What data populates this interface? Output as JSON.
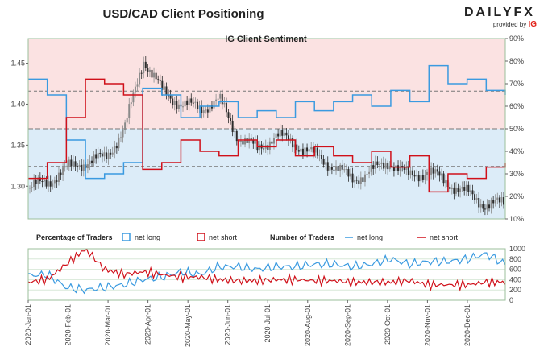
{
  "header": {
    "title": "USD/CAD Client Positioning",
    "logo_text": "DAILYFX",
    "logo_sub": "provided by",
    "logo_brand": "IG"
  },
  "colors": {
    "long": "#3a9ae0",
    "short": "#d0101a",
    "long_zone": "#dcecf8",
    "short_zone": "#fbe2e2",
    "candle_up": "#8a8a8a",
    "candle_down": "#2b2b2b",
    "grid": "#8fbf8f"
  },
  "chart_data": [
    {
      "type": "line",
      "title": "IG Client Sentiment",
      "price_axis": {
        "ylim": [
          1.26,
          1.48
        ],
        "ticks": [
          1.3,
          1.35,
          1.4,
          1.45
        ]
      },
      "sentiment_axis": {
        "ylim": [
          10,
          90
        ],
        "ticks": [
          "10%",
          "20%",
          "30%",
          "40%",
          "50%",
          "60%",
          "70%",
          "80%",
          "90%"
        ]
      },
      "x": [
        "2020-01-01",
        "2020-01-15",
        "2020-02-01",
        "2020-02-15",
        "2020-03-01",
        "2020-03-10",
        "2020-03-19",
        "2020-04-01",
        "2020-04-15",
        "2020-05-01",
        "2020-05-15",
        "2020-06-01",
        "2020-06-15",
        "2020-07-01",
        "2020-07-15",
        "2020-08-01",
        "2020-08-15",
        "2020-09-01",
        "2020-09-15",
        "2020-10-01",
        "2020-10-15",
        "2020-11-01",
        "2020-11-15",
        "2020-12-01",
        "2020-12-15",
        "2020-12-31"
      ],
      "price_close": [
        1.298,
        1.306,
        1.322,
        1.33,
        1.335,
        1.37,
        1.455,
        1.415,
        1.4,
        1.395,
        1.405,
        1.36,
        1.345,
        1.362,
        1.352,
        1.338,
        1.325,
        1.308,
        1.318,
        1.33,
        1.312,
        1.318,
        1.305,
        1.292,
        1.278,
        1.278
      ],
      "series": [
        {
          "name": "net long",
          "values": [
            72,
            65,
            45,
            28,
            30,
            35,
            68,
            65,
            55,
            60,
            62,
            55,
            58,
            55,
            62,
            58,
            62,
            65,
            60,
            67,
            62,
            78,
            70,
            72,
            67,
            65
          ]
        },
        {
          "name": "net short",
          "values": [
            28,
            35,
            55,
            72,
            70,
            65,
            32,
            35,
            45,
            40,
            38,
            45,
            42,
            45,
            38,
            42,
            38,
            35,
            40,
            33,
            38,
            22,
            30,
            28,
            33,
            35
          ]
        }
      ]
    },
    {
      "type": "line",
      "xlabels": [
        "2020-Jan-01",
        "2020-Feb-01",
        "2020-Mar-01",
        "2020-Apr-01",
        "2020-May-01",
        "2020-Jun-01",
        "2020-Jul-01",
        "2020-Aug-01",
        "2020-Sep-01",
        "2020-Oct-01",
        "2020-Nov-01",
        "2020-Dec-01"
      ],
      "legend": {
        "pct_label": "Percentage of Traders",
        "pct_long": "net long",
        "pct_short": "net short",
        "num_label": "Number of Traders",
        "num_long": "net long",
        "num_short": "net short"
      },
      "ylim": [
        0,
        1000
      ],
      "yticks": [
        "0",
        "200",
        "400",
        "600",
        "800",
        "1000"
      ],
      "series": [
        {
          "name": "net long",
          "values": [
            480,
            500,
            250,
            200,
            250,
            300,
            400,
            450,
            550,
            500,
            650,
            650,
            600,
            650,
            650,
            700,
            700,
            650,
            700,
            800,
            700,
            750,
            750,
            800,
            900,
            700
          ]
        },
        {
          "name": "net short",
          "values": [
            350,
            400,
            700,
            1000,
            600,
            500,
            550,
            500,
            450,
            450,
            400,
            380,
            380,
            400,
            400,
            380,
            380,
            350,
            350,
            350,
            380,
            300,
            300,
            300,
            350,
            350
          ]
        }
      ]
    }
  ]
}
